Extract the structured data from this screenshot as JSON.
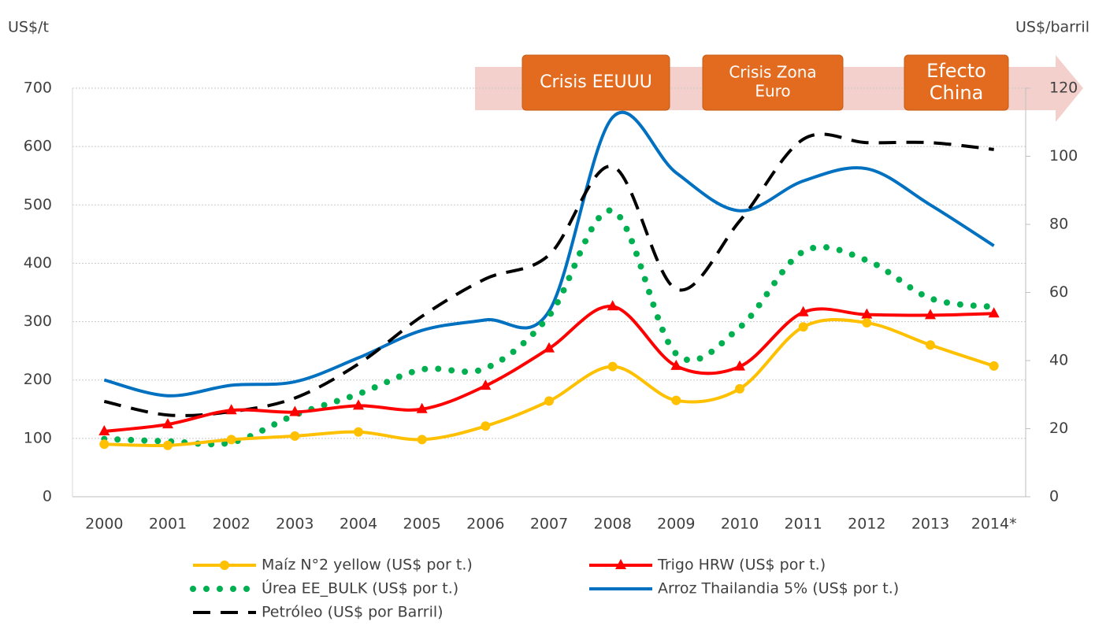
{
  "chart_data": {
    "type": "line",
    "y_title": "US$/t",
    "y2_title": "US$/barril",
    "categories": [
      "2000",
      "2001",
      "2002",
      "2003",
      "2004",
      "2005",
      "2006",
      "2007",
      "2008",
      "2009",
      "2010",
      "2011",
      "2012",
      "2013",
      "2014*"
    ],
    "ylim": [
      0,
      700
    ],
    "yticks": [
      0,
      100,
      200,
      300,
      400,
      500,
      600,
      700
    ],
    "y2lim": [
      0,
      120
    ],
    "y2ticks": [
      0,
      20,
      40,
      60,
      80,
      100,
      120
    ],
    "grid": true,
    "series": [
      {
        "name": "Maíz N°2 yellow (US$ por t.)",
        "color": "#ffc000",
        "style": "solid",
        "marker": "circle",
        "values": [
          90,
          88,
          98,
          104,
          111,
          98,
          121,
          164,
          223,
          165,
          185,
          291,
          298,
          260,
          224
        ]
      },
      {
        "name": "Trigo HRW (US$ por t.)",
        "color": "#ff0000",
        "style": "solid",
        "marker": "triangle",
        "values": [
          112,
          124,
          148,
          145,
          156,
          150,
          190,
          254,
          326,
          224,
          223,
          316,
          312,
          311,
          314
        ]
      },
      {
        "name": "Úrea EE_BULK (US$ por t.)",
        "color": "#00b050",
        "style": "dotted",
        "values": [
          99,
          95,
          93,
          140,
          176,
          218,
          220,
          310,
          490,
          245,
          290,
          420,
          405,
          340,
          325
        ]
      },
      {
        "name": "Arroz Thailandia 5% (US$ por t.)",
        "color": "#0070c0",
        "style": "solid",
        "values": [
          200,
          173,
          191,
          197,
          238,
          285,
          303,
          318,
          650,
          555,
          490,
          541,
          562,
          500,
          430
        ]
      },
      {
        "name": "Petróleo (US$ por Barril)",
        "color": "#000000",
        "style": "dashed",
        "axis": "y2",
        "values": [
          28,
          24,
          25,
          29,
          39,
          53,
          64,
          71,
          97,
          61,
          81,
          105,
          104,
          104,
          102
        ]
      }
    ],
    "annotations": [
      {
        "lines": [
          "Crisis EEUUU"
        ]
      },
      {
        "lines": [
          "Crisis Zona",
          "Euro"
        ]
      },
      {
        "lines": [
          "Efecto",
          "China"
        ]
      }
    ]
  }
}
